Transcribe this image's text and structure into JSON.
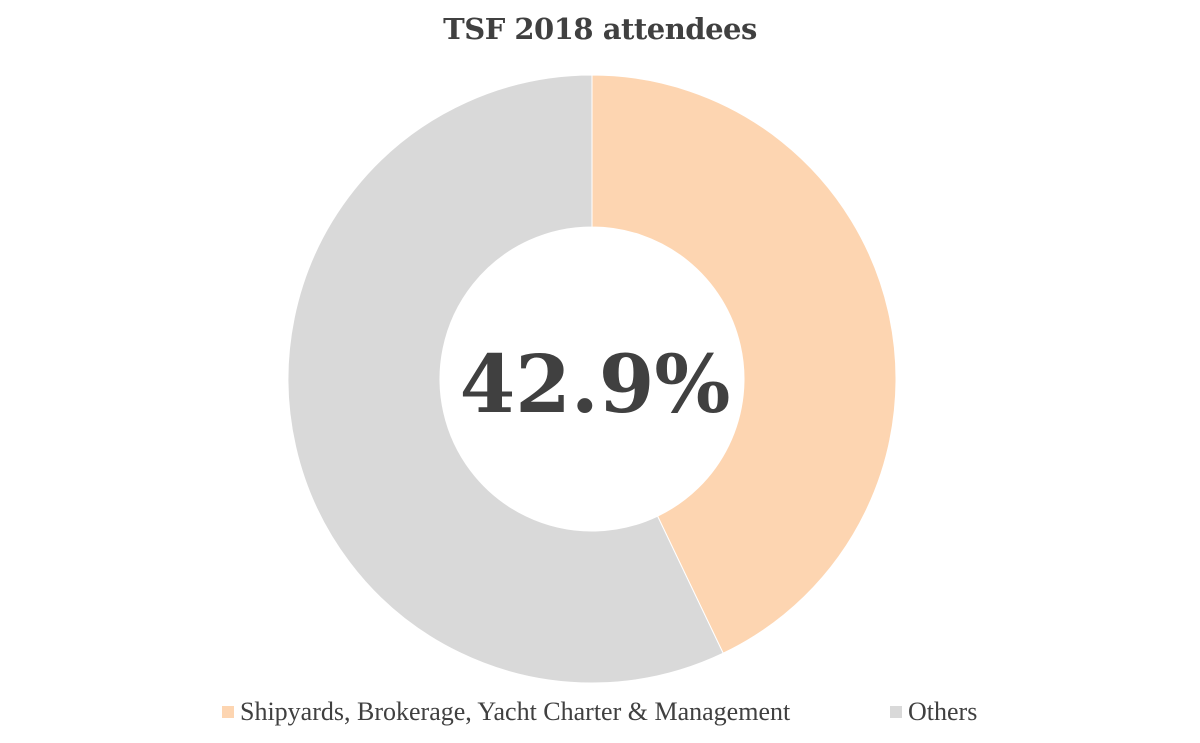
{
  "chart_data": {
    "type": "pie",
    "title": "TSF 2018 attendees",
    "center_label": "42.9%",
    "legend_position": "bottom",
    "slices": [
      {
        "name": "Shipyards, Brokerage, Yacht Charter & Management",
        "value": 42.9,
        "color": "#FDD5B1"
      },
      {
        "name": "Others",
        "value": 57.1,
        "color": "#D9D9D9"
      }
    ]
  }
}
